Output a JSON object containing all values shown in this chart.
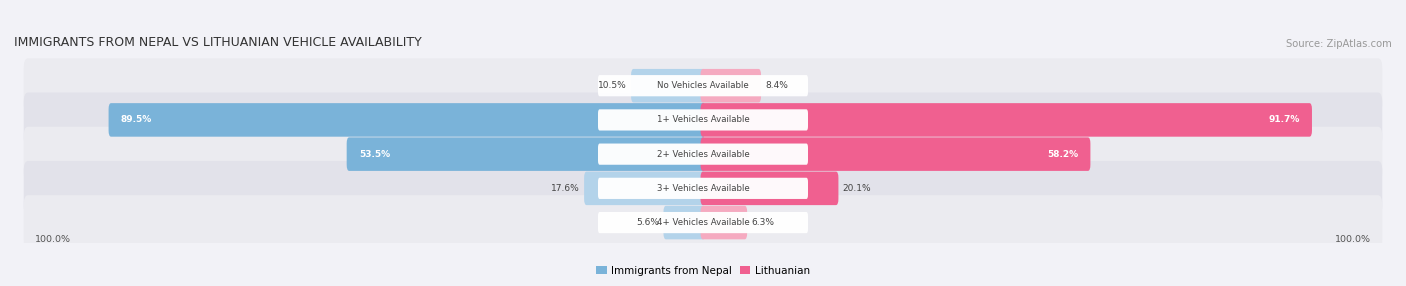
{
  "title": "IMMIGRANTS FROM NEPAL VS LITHUANIAN VEHICLE AVAILABILITY",
  "source": "Source: ZipAtlas.com",
  "categories": [
    "No Vehicles Available",
    "1+ Vehicles Available",
    "2+ Vehicles Available",
    "3+ Vehicles Available",
    "4+ Vehicles Available"
  ],
  "nepal_values": [
    10.5,
    89.5,
    53.5,
    17.6,
    5.6
  ],
  "lithuanian_values": [
    8.4,
    91.7,
    58.2,
    20.1,
    6.3
  ],
  "nepal_color": "#7ab3d9",
  "lithuanian_color": "#f06090",
  "nepal_color_light": "#b3d3ea",
  "lithuanian_color_light": "#f5aac0",
  "title_color": "#333333",
  "source_color": "#999999",
  "footer_label": "100.0%",
  "legend_nepal": "Immigrants from Nepal",
  "legend_lithuanian": "Lithuanian",
  "max_value": 100.0,
  "fig_bg": "#f2f2f7",
  "row_bg_colors": [
    "#ebebf0",
    "#e2e2ea"
  ]
}
